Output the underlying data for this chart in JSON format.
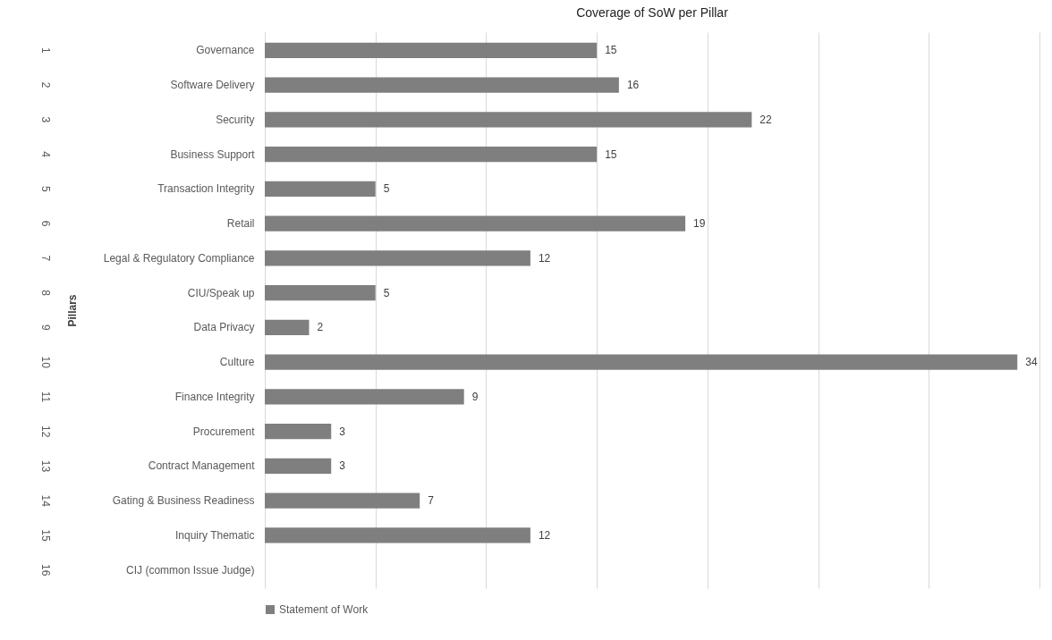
{
  "chart_data": {
    "type": "bar",
    "orientation": "horizontal",
    "title": "Coverage of SoW per Pillar",
    "ylabel": "Pillars",
    "categories": [
      "Governance",
      "Software Delivery",
      "Security",
      "Business Support",
      "Transaction Integrity",
      "Retail",
      "Legal & Regulatory Compliance",
      "CIU/Speak up",
      "Data Privacy",
      "Culture",
      "Finance Integrity",
      "Procurement",
      "Contract Management",
      "Gating & Business Readiness",
      "Inquiry Thematic",
      "CIJ (common Issue Judge)"
    ],
    "series": [
      {
        "name": "Statement of Work",
        "color": "#7f7f7f",
        "values": [
          15,
          16,
          22,
          15,
          5,
          19,
          12,
          5,
          2,
          34,
          9,
          3,
          3,
          7,
          12,
          null
        ]
      }
    ],
    "annotations": [
      "1",
      "2",
      "3",
      "4",
      "5",
      "6",
      "7",
      "8",
      "9",
      "10",
      "11",
      "12",
      "13",
      "14",
      "15",
      "16"
    ],
    "xlim": [
      0,
      35
    ],
    "xticks": [
      {
        "value": 0,
        "label": null
      },
      {
        "value": 5,
        "label": null
      },
      {
        "value": 10,
        "label": null
      },
      {
        "value": 15,
        "label": null
      },
      {
        "value": 20,
        "label": null
      },
      {
        "value": 25,
        "label": null
      },
      {
        "value": 30,
        "label": null
      },
      {
        "value": 35,
        "label": null
      }
    ],
    "tick_labels": "y",
    "grid": "x",
    "legend": "bottom",
    "data_labels": true
  }
}
